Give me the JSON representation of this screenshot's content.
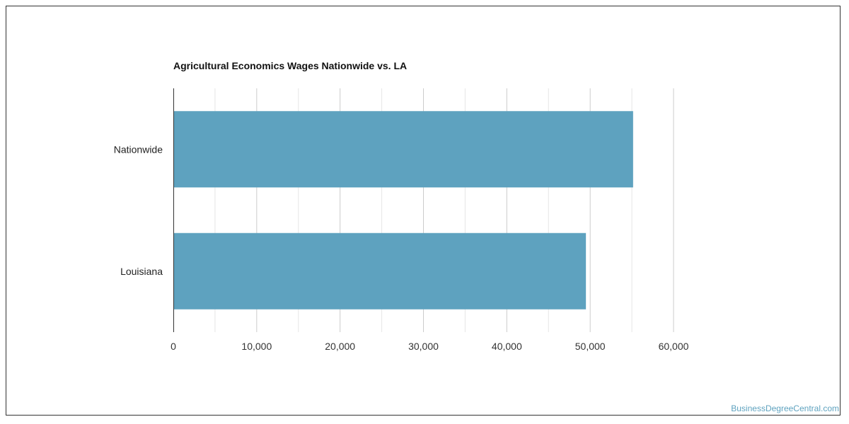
{
  "chart_data": {
    "type": "bar",
    "orientation": "horizontal",
    "title": "Agricultural Economics Wages Nationwide vs. LA",
    "xlabel": "",
    "ylabel": "",
    "categories": [
      "Nationwide",
      "Louisiana"
    ],
    "values": [
      55150,
      49490
    ],
    "xlim": [
      0,
      60000
    ],
    "x_ticks": [
      0,
      10000,
      20000,
      30000,
      40000,
      50000,
      60000
    ],
    "x_tick_labels": [
      "0",
      "10,000",
      "20,000",
      "30,000",
      "40,000",
      "50,000",
      "60,000"
    ],
    "grid": true,
    "legend": "none",
    "bar_color": "#5ea2bf"
  },
  "footer": {
    "watermark": "BusinessDegreeCentral.com",
    "watermark_color": "#5ea2bf"
  }
}
